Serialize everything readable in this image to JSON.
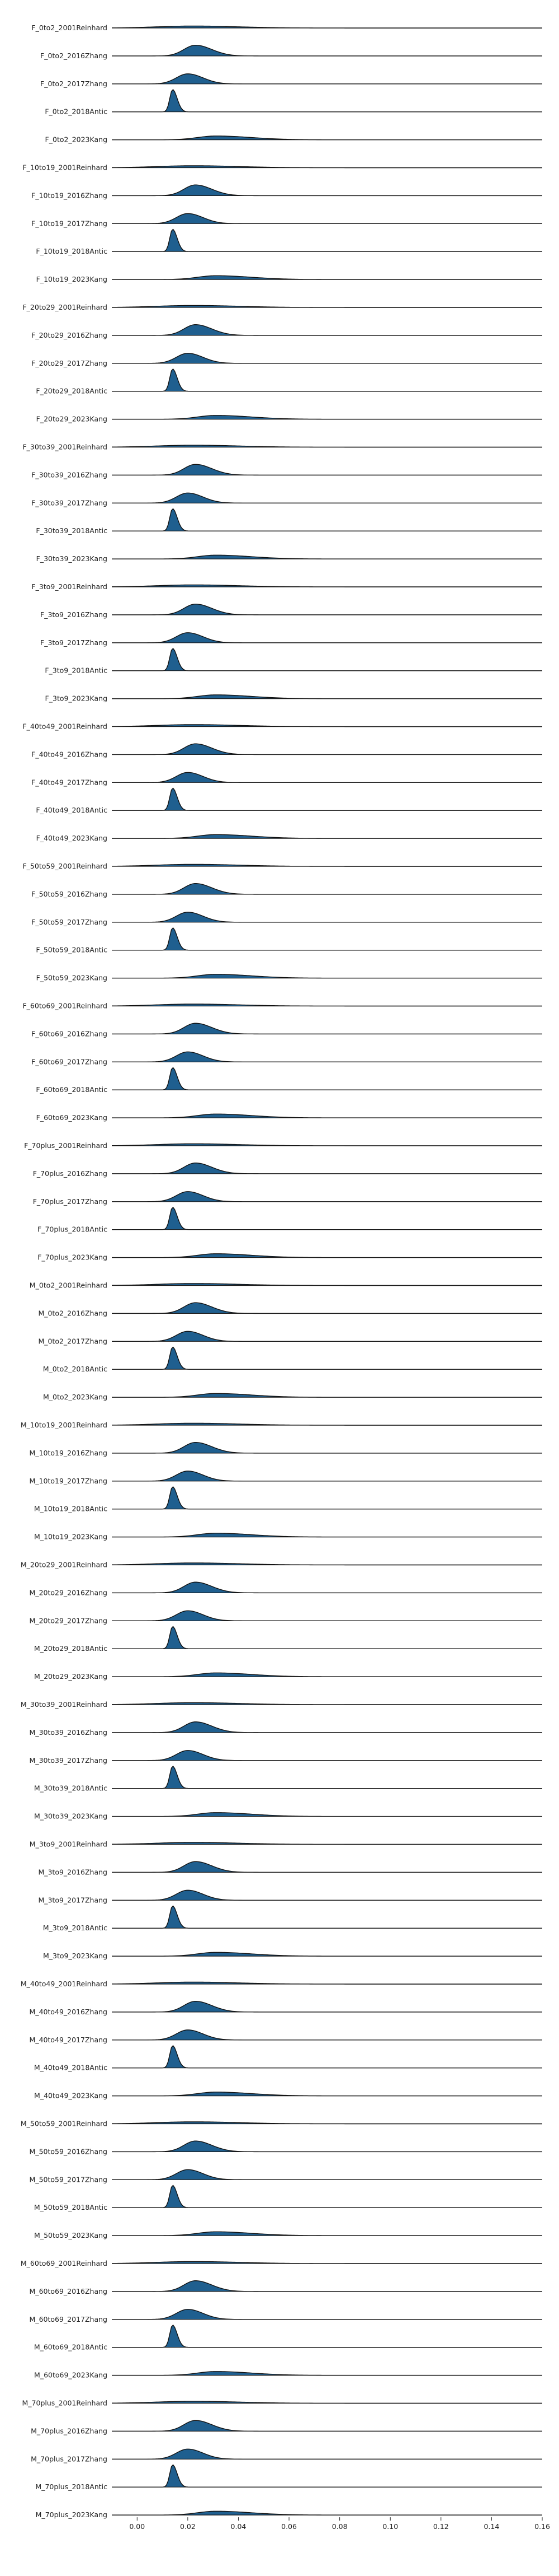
{
  "colors": {
    "fill": "#1f5f8f",
    "stroke": "#111111",
    "baseline": "#1a1a1a"
  },
  "chart_data": {
    "type": "area",
    "subtype": "ridgeline",
    "title": "",
    "xlabel": "",
    "ylabel": "",
    "xlim": [
      -0.01,
      0.16
    ],
    "xticks": [
      0.0,
      0.02,
      0.04,
      0.06,
      0.08,
      0.1,
      0.12,
      0.14,
      0.16
    ],
    "xtick_labels": [
      "0.00",
      "0.02",
      "0.04",
      "0.06",
      "0.08",
      "0.10",
      "0.12",
      "0.14",
      "0.16"
    ],
    "grid": false,
    "legend": "none",
    "distribution_shapes": {
      "Reinhard": {
        "peak": 0.022,
        "spread_left": 0.014,
        "spread_right": 0.018,
        "relative_height": 0.09
      },
      "Zhang2016": {
        "peak": 0.023,
        "spread_left": 0.0045,
        "spread_right": 0.0065,
        "relative_height": 0.48
      },
      "Zhang2017": {
        "peak": 0.02,
        "spread_left": 0.0045,
        "spread_right": 0.006,
        "relative_height": 0.45
      },
      "Antic": {
        "peak": 0.014,
        "spread_left": 0.0011,
        "spread_right": 0.0018,
        "relative_height": 1.0
      },
      "Kang": {
        "peak": 0.031,
        "spread_left": 0.007,
        "spread_right": 0.014,
        "relative_height": 0.17
      }
    },
    "series": [
      {
        "name": "F_0to2_2001Reinhard",
        "shape": "Reinhard"
      },
      {
        "name": "F_0to2_2016Zhang",
        "shape": "Zhang2016"
      },
      {
        "name": "F_0to2_2017Zhang",
        "shape": "Zhang2017"
      },
      {
        "name": "F_0to2_2018Antic",
        "shape": "Antic"
      },
      {
        "name": "F_0to2_2023Kang",
        "shape": "Kang"
      },
      {
        "name": "F_10to19_2001Reinhard",
        "shape": "Reinhard"
      },
      {
        "name": "F_10to19_2016Zhang",
        "shape": "Zhang2016"
      },
      {
        "name": "F_10to19_2017Zhang",
        "shape": "Zhang2017"
      },
      {
        "name": "F_10to19_2018Antic",
        "shape": "Antic"
      },
      {
        "name": "F_10to19_2023Kang",
        "shape": "Kang"
      },
      {
        "name": "F_20to29_2001Reinhard",
        "shape": "Reinhard"
      },
      {
        "name": "F_20to29_2016Zhang",
        "shape": "Zhang2016"
      },
      {
        "name": "F_20to29_2017Zhang",
        "shape": "Zhang2017"
      },
      {
        "name": "F_20to29_2018Antic",
        "shape": "Antic"
      },
      {
        "name": "F_20to29_2023Kang",
        "shape": "Kang"
      },
      {
        "name": "F_30to39_2001Reinhard",
        "shape": "Reinhard"
      },
      {
        "name": "F_30to39_2016Zhang",
        "shape": "Zhang2016"
      },
      {
        "name": "F_30to39_2017Zhang",
        "shape": "Zhang2017"
      },
      {
        "name": "F_30to39_2018Antic",
        "shape": "Antic"
      },
      {
        "name": "F_30to39_2023Kang",
        "shape": "Kang"
      },
      {
        "name": "F_3to9_2001Reinhard",
        "shape": "Reinhard"
      },
      {
        "name": "F_3to9_2016Zhang",
        "shape": "Zhang2016"
      },
      {
        "name": "F_3to9_2017Zhang",
        "shape": "Zhang2017"
      },
      {
        "name": "F_3to9_2018Antic",
        "shape": "Antic"
      },
      {
        "name": "F_3to9_2023Kang",
        "shape": "Kang"
      },
      {
        "name": "F_40to49_2001Reinhard",
        "shape": "Reinhard"
      },
      {
        "name": "F_40to49_2016Zhang",
        "shape": "Zhang2016"
      },
      {
        "name": "F_40to49_2017Zhang",
        "shape": "Zhang2017"
      },
      {
        "name": "F_40to49_2018Antic",
        "shape": "Antic"
      },
      {
        "name": "F_40to49_2023Kang",
        "shape": "Kang"
      },
      {
        "name": "F_50to59_2001Reinhard",
        "shape": "Reinhard"
      },
      {
        "name": "F_50to59_2016Zhang",
        "shape": "Zhang2016"
      },
      {
        "name": "F_50to59_2017Zhang",
        "shape": "Zhang2017"
      },
      {
        "name": "F_50to59_2018Antic",
        "shape": "Antic"
      },
      {
        "name": "F_50to59_2023Kang",
        "shape": "Kang"
      },
      {
        "name": "F_60to69_2001Reinhard",
        "shape": "Reinhard"
      },
      {
        "name": "F_60to69_2016Zhang",
        "shape": "Zhang2016"
      },
      {
        "name": "F_60to69_2017Zhang",
        "shape": "Zhang2017"
      },
      {
        "name": "F_60to69_2018Antic",
        "shape": "Antic"
      },
      {
        "name": "F_60to69_2023Kang",
        "shape": "Kang"
      },
      {
        "name": "F_70plus_2001Reinhard",
        "shape": "Reinhard"
      },
      {
        "name": "F_70plus_2016Zhang",
        "shape": "Zhang2016"
      },
      {
        "name": "F_70plus_2017Zhang",
        "shape": "Zhang2017"
      },
      {
        "name": "F_70plus_2018Antic",
        "shape": "Antic"
      },
      {
        "name": "F_70plus_2023Kang",
        "shape": "Kang"
      },
      {
        "name": "M_0to2_2001Reinhard",
        "shape": "Reinhard"
      },
      {
        "name": "M_0to2_2016Zhang",
        "shape": "Zhang2016"
      },
      {
        "name": "M_0to2_2017Zhang",
        "shape": "Zhang2017"
      },
      {
        "name": "M_0to2_2018Antic",
        "shape": "Antic"
      },
      {
        "name": "M_0to2_2023Kang",
        "shape": "Kang"
      },
      {
        "name": "M_10to19_2001Reinhard",
        "shape": "Reinhard"
      },
      {
        "name": "M_10to19_2016Zhang",
        "shape": "Zhang2016"
      },
      {
        "name": "M_10to19_2017Zhang",
        "shape": "Zhang2017"
      },
      {
        "name": "M_10to19_2018Antic",
        "shape": "Antic"
      },
      {
        "name": "M_10to19_2023Kang",
        "shape": "Kang"
      },
      {
        "name": "M_20to29_2001Reinhard",
        "shape": "Reinhard"
      },
      {
        "name": "M_20to29_2016Zhang",
        "shape": "Zhang2016"
      },
      {
        "name": "M_20to29_2017Zhang",
        "shape": "Zhang2017"
      },
      {
        "name": "M_20to29_2018Antic",
        "shape": "Antic"
      },
      {
        "name": "M_20to29_2023Kang",
        "shape": "Kang"
      },
      {
        "name": "M_30to39_2001Reinhard",
        "shape": "Reinhard"
      },
      {
        "name": "M_30to39_2016Zhang",
        "shape": "Zhang2016"
      },
      {
        "name": "M_30to39_2017Zhang",
        "shape": "Zhang2017"
      },
      {
        "name": "M_30to39_2018Antic",
        "shape": "Antic"
      },
      {
        "name": "M_30to39_2023Kang",
        "shape": "Kang"
      },
      {
        "name": "M_3to9_2001Reinhard",
        "shape": "Reinhard"
      },
      {
        "name": "M_3to9_2016Zhang",
        "shape": "Zhang2016"
      },
      {
        "name": "M_3to9_2017Zhang",
        "shape": "Zhang2017"
      },
      {
        "name": "M_3to9_2018Antic",
        "shape": "Antic"
      },
      {
        "name": "M_3to9_2023Kang",
        "shape": "Kang"
      },
      {
        "name": "M_40to49_2001Reinhard",
        "shape": "Reinhard"
      },
      {
        "name": "M_40to49_2016Zhang",
        "shape": "Zhang2016"
      },
      {
        "name": "M_40to49_2017Zhang",
        "shape": "Zhang2017"
      },
      {
        "name": "M_40to49_2018Antic",
        "shape": "Antic"
      },
      {
        "name": "M_40to49_2023Kang",
        "shape": "Kang"
      },
      {
        "name": "M_50to59_2001Reinhard",
        "shape": "Reinhard"
      },
      {
        "name": "M_50to59_2016Zhang",
        "shape": "Zhang2016"
      },
      {
        "name": "M_50to59_2017Zhang",
        "shape": "Zhang2017"
      },
      {
        "name": "M_50to59_2018Antic",
        "shape": "Antic"
      },
      {
        "name": "M_50to59_2023Kang",
        "shape": "Kang"
      },
      {
        "name": "M_60to69_2001Reinhard",
        "shape": "Reinhard"
      },
      {
        "name": "M_60to69_2016Zhang",
        "shape": "Zhang2016"
      },
      {
        "name": "M_60to69_2017Zhang",
        "shape": "Zhang2017"
      },
      {
        "name": "M_60to69_2018Antic",
        "shape": "Antic"
      },
      {
        "name": "M_60to69_2023Kang",
        "shape": "Kang"
      },
      {
        "name": "M_70plus_2001Reinhard",
        "shape": "Reinhard"
      },
      {
        "name": "M_70plus_2016Zhang",
        "shape": "Zhang2016"
      },
      {
        "name": "M_70plus_2017Zhang",
        "shape": "Zhang2017"
      },
      {
        "name": "M_70plus_2018Antic",
        "shape": "Antic"
      },
      {
        "name": "M_70plus_2023Kang",
        "shape": "Kang"
      }
    ]
  }
}
